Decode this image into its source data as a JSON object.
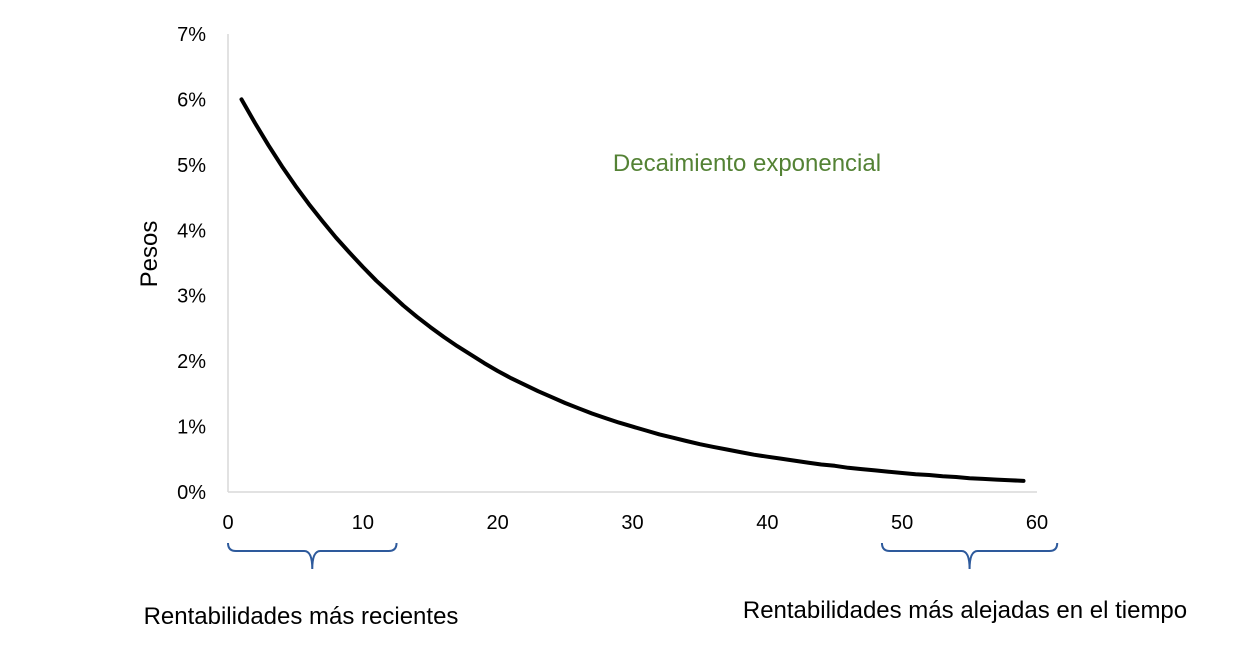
{
  "chart_data": {
    "type": "line",
    "title": "",
    "xlabel": "",
    "ylabel": "Pesos",
    "xlim": [
      0,
      60
    ],
    "ylim": [
      0,
      0.07
    ],
    "x_ticks": [
      0,
      10,
      20,
      30,
      40,
      50,
      60
    ],
    "x_tick_labels": [
      "0",
      "10",
      "20",
      "30",
      "40",
      "50",
      "60"
    ],
    "y_ticks": [
      0,
      0.01,
      0.02,
      0.03,
      0.04,
      0.05,
      0.06,
      0.07
    ],
    "y_tick_labels": [
      "0%",
      "1%",
      "2%",
      "3%",
      "4%",
      "5%",
      "6%",
      "7%"
    ],
    "grid": false,
    "legend": "none",
    "series": [
      {
        "color": "#000000",
        "x": [
          1,
          2,
          3,
          4,
          5,
          6,
          7,
          8,
          9,
          10,
          11,
          12,
          13,
          14,
          15,
          16,
          17,
          18,
          19,
          20,
          21,
          22,
          23,
          24,
          25,
          26,
          27,
          28,
          29,
          30,
          31,
          32,
          33,
          34,
          35,
          36,
          37,
          38,
          39,
          40,
          41,
          42,
          43,
          44,
          45,
          46,
          47,
          48,
          49,
          50,
          51,
          52,
          53,
          54,
          55,
          56,
          57,
          58,
          59
        ],
        "values": [
          0.06,
          0.0564,
          0.053,
          0.0498,
          0.0468,
          0.044,
          0.0414,
          0.0389,
          0.0366,
          0.0344,
          0.0323,
          0.0304,
          0.0285,
          0.0268,
          0.0252,
          0.0237,
          0.0223,
          0.021,
          0.0197,
          0.0185,
          0.0174,
          0.0164,
          0.0154,
          0.0145,
          0.0136,
          0.0128,
          0.012,
          0.0113,
          0.0106,
          0.01,
          0.0094,
          0.0088,
          0.0083,
          0.0078,
          0.0073,
          0.0069,
          0.0065,
          0.0061,
          0.0057,
          0.0054,
          0.0051,
          0.0048,
          0.0045,
          0.0042,
          0.004,
          0.0037,
          0.0035,
          0.0033,
          0.0031,
          0.0029,
          0.0027,
          0.0026,
          0.0024,
          0.0023,
          0.0021,
          0.002,
          0.0019,
          0.0018,
          0.0017
        ]
      }
    ],
    "annotations": [
      {
        "text": "Decaimiento exponencial",
        "color": "#548235"
      }
    ],
    "brackets": [
      {
        "label": "Rentabilidades más recientes",
        "from": 0,
        "to": 12.5,
        "color": "#2E5A9C"
      },
      {
        "label": "Rentabilidades más alejadas en el tiempo",
        "from": 48.5,
        "to": 61.5,
        "color": "#2E5A9C"
      }
    ]
  }
}
